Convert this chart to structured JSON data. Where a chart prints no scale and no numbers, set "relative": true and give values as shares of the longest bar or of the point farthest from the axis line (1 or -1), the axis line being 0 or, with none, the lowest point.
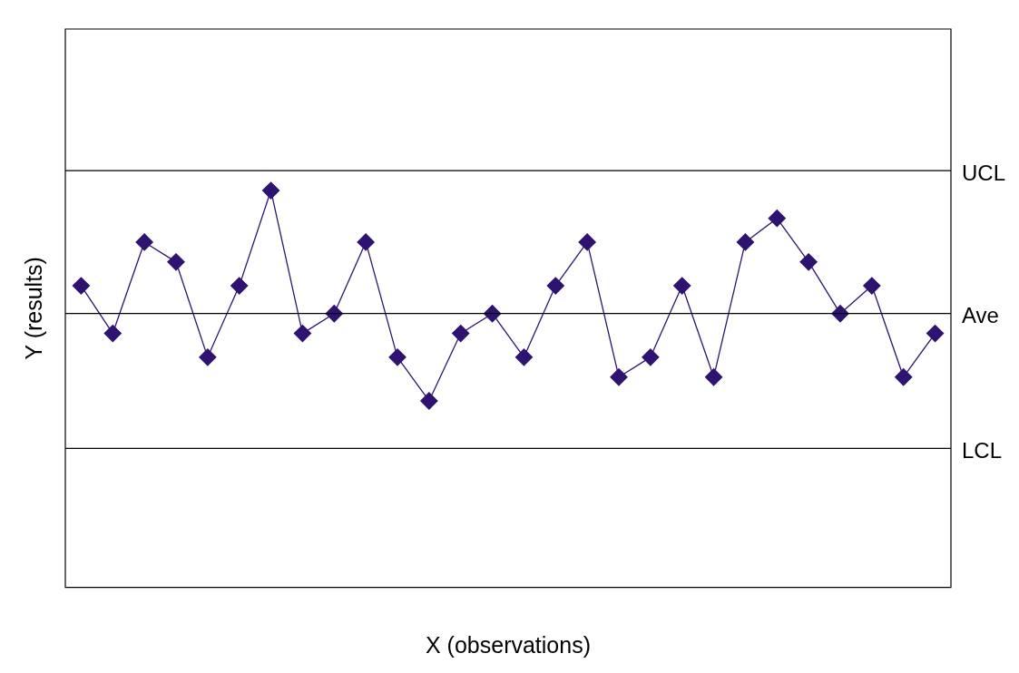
{
  "chart_data": {
    "type": "line",
    "relative": true,
    "xlabel": "X (observations)",
    "ylabel": "Y (results)",
    "categories": [
      null,
      null,
      null,
      null,
      null,
      null,
      null,
      null,
      null,
      null,
      null,
      null,
      null,
      null,
      null,
      null,
      null,
      null,
      null,
      null,
      null,
      null,
      null,
      null,
      null,
      null,
      null,
      null
    ],
    "series": [
      {
        "color": "#2e1470",
        "values": [
          0.76,
          0.64,
          0.87,
          0.82,
          0.58,
          0.76,
          1,
          0.64,
          0.69,
          0.87,
          0.58,
          0.47,
          0.64,
          0.69,
          0.58,
          0.76,
          0.87,
          0.53,
          0.58,
          0.76,
          0.53,
          0.87,
          0.93,
          0.82,
          0.69,
          0.76,
          0.53,
          0.64
        ]
      }
    ],
    "marker": "diamond",
    "line_style": "solid",
    "grid": false,
    "legend": false,
    "ref_lines": [
      {
        "axis": "y",
        "value": 1.05,
        "label": "UCL",
        "color": "#000000"
      },
      {
        "axis": "y",
        "value": 0.69,
        "label": "Ave",
        "color": "#000000"
      },
      {
        "axis": "y",
        "value": 0.35,
        "label": "LCL",
        "color": "#000000"
      }
    ]
  }
}
